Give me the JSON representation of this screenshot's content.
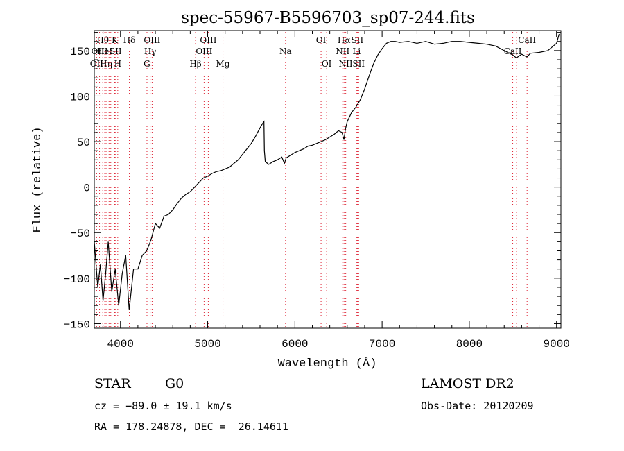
{
  "chart_data": {
    "type": "line",
    "title": "spec-55967-B5596703_sp07-244.fits",
    "xlabel": "Wavelength (Å)",
    "ylabel": "Flux (relative)",
    "xlim": [
      3700,
      9050
    ],
    "ylim": [
      -155,
      172
    ],
    "xticks": [
      4000,
      5000,
      6000,
      7000,
      8000,
      9000
    ],
    "yticks": [
      -150,
      -100,
      -50,
      0,
      50,
      100,
      150
    ],
    "ytick_labels": [
      "−150",
      "−100",
      "−50",
      "0",
      "50",
      "100",
      "150"
    ],
    "grid": false,
    "series": [
      {
        "x": [
          3700,
          3740,
          3770,
          3800,
          3830,
          3860,
          3900,
          3940,
          3980,
          4020,
          4060,
          4100,
          4150,
          4200,
          4250,
          4300,
          4350,
          4400,
          4450,
          4500,
          4550,
          4600,
          4650,
          4700,
          4750,
          4800,
          4850,
          4900,
          4950,
          5000,
          5050,
          5100,
          5150,
          5200,
          5250,
          5300,
          5350,
          5400,
          5450,
          5500,
          5550,
          5600,
          5630,
          5645,
          5650,
          5660,
          5700,
          5750,
          5800,
          5850,
          5880,
          5900,
          5950,
          6000,
          6050,
          6100,
          6150,
          6200,
          6250,
          6300,
          6350,
          6400,
          6450,
          6500,
          6540,
          6563,
          6580,
          6600,
          6650,
          6700,
          6750,
          6800,
          6850,
          6900,
          6950,
          7000,
          7050,
          7100,
          7150,
          7200,
          7300,
          7400,
          7500,
          7600,
          7700,
          7800,
          7900,
          8000,
          8100,
          8200,
          8300,
          8400,
          8500,
          8540,
          8600,
          8660,
          8700,
          8800,
          8900,
          9000,
          9030
        ],
        "y": [
          -60,
          -110,
          -85,
          -125,
          -95,
          -60,
          -115,
          -90,
          -130,
          -95,
          -75,
          -135,
          -90,
          -90,
          -75,
          -70,
          -58,
          -40,
          -45,
          -32,
          -30,
          -25,
          -18,
          -12,
          -8,
          -5,
          0,
          5,
          10,
          12,
          15,
          17,
          18,
          20,
          22,
          26,
          30,
          36,
          42,
          48,
          56,
          65,
          70,
          72,
          40,
          28,
          25,
          28,
          30,
          33,
          26,
          32,
          35,
          38,
          40,
          42,
          45,
          46,
          48,
          50,
          52,
          55,
          58,
          62,
          60,
          52,
          64,
          72,
          82,
          88,
          96,
          108,
          122,
          135,
          145,
          152,
          158,
          160,
          160,
          159,
          160,
          158,
          160,
          157,
          158,
          160,
          160,
          159,
          158,
          157,
          155,
          150,
          145,
          142,
          146,
          143,
          147,
          148,
          150,
          158,
          168
        ]
      }
    ],
    "line_markers": [
      {
        "x": 3727,
        "label": "OII",
        "row": 2
      },
      {
        "x": 3760,
        "label": "OIII",
        "row": 1
      },
      {
        "x": 3797,
        "label": "Hθ",
        "row": 0
      },
      {
        "x": 3820,
        "label": "HeI",
        "row": 1
      },
      {
        "x": 3835,
        "label": "Hη",
        "row": 2
      },
      {
        "x": 3869,
        "label": "",
        "row": -1
      },
      {
        "x": 3889,
        "label": "",
        "row": -1
      },
      {
        "x": 3934,
        "label": "K",
        "row": 0
      },
      {
        "x": 3945,
        "label": "SII",
        "row": 1
      },
      {
        "x": 3969,
        "label": "H",
        "row": 2
      },
      {
        "x": 4102,
        "label": "Hδ",
        "row": 0
      },
      {
        "x": 4304,
        "label": "G",
        "row": 2
      },
      {
        "x": 4341,
        "label": "Hγ",
        "row": 1
      },
      {
        "x": 4363,
        "label": "OIII",
        "row": 0
      },
      {
        "x": 4861,
        "label": "Hβ",
        "row": 2
      },
      {
        "x": 4959,
        "label": "OIII",
        "row": 1
      },
      {
        "x": 5007,
        "label": "OIII",
        "row": 0
      },
      {
        "x": 5175,
        "label": "Mg",
        "row": 2
      },
      {
        "x": 5893,
        "label": "Na",
        "row": 1
      },
      {
        "x": 6300,
        "label": "OI",
        "row": 0
      },
      {
        "x": 6364,
        "label": "OI",
        "row": 2
      },
      {
        "x": 6548,
        "label": "NII",
        "row": 1
      },
      {
        "x": 6563,
        "label": "Hα",
        "row": 0
      },
      {
        "x": 6583,
        "label": "NII",
        "row": 2
      },
      {
        "x": 6707,
        "label": "Li",
        "row": 1
      },
      {
        "x": 6716,
        "label": "SII",
        "row": 0
      },
      {
        "x": 6731,
        "label": "SII",
        "row": 2
      },
      {
        "x": 8498,
        "label": "CaII",
        "row": 1
      },
      {
        "x": 8542,
        "label": "",
        "row": -1
      },
      {
        "x": 8662,
        "label": "CaII",
        "row": 0
      }
    ]
  },
  "info": {
    "class_label": "STAR",
    "subclass": "G0",
    "survey": "LAMOST DR2",
    "cz": "cz = −89.0 ± 19.1 km/s",
    "obs_date": "Obs-Date: 20120209",
    "coords": "RA = 178.24878, DEC =  26.14611"
  }
}
